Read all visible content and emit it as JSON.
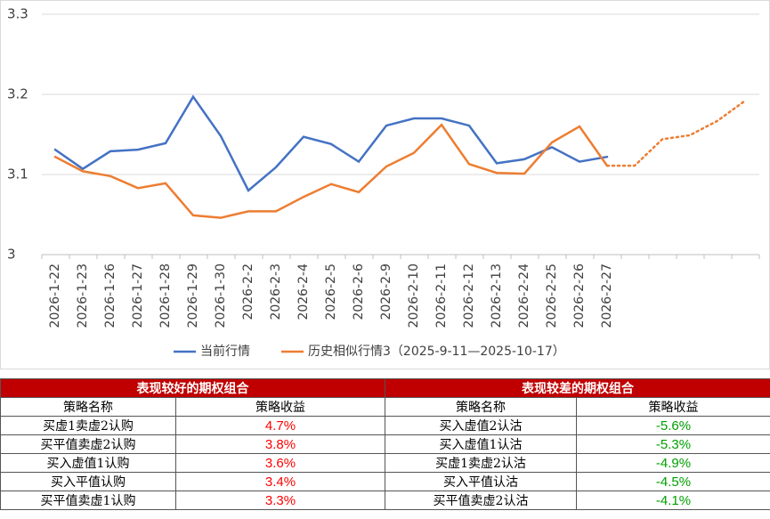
{
  "chart_data": {
    "type": "line",
    "categories": [
      "2026-1-22",
      "2026-1-23",
      "2026-1-26",
      "2026-1-27",
      "2026-1-28",
      "2026-1-29",
      "2026-1-30",
      "2026-2-2",
      "2026-2-3",
      "2026-2-4",
      "2026-2-5",
      "2026-2-6",
      "2026-2-9",
      "2026-2-10",
      "2026-2-11",
      "2026-2-12",
      "2026-2-13",
      "2026-2-24",
      "2026-2-25",
      "2026-2-26",
      "2026-2-27",
      null,
      null,
      null,
      null,
      null
    ],
    "series": [
      {
        "name": "当前行情",
        "color": "#4472c4",
        "values": [
          3.131,
          3.107,
          3.129,
          3.131,
          3.139,
          3.197,
          3.148,
          3.08,
          3.109,
          3.147,
          3.138,
          3.116,
          3.161,
          3.17,
          3.17,
          3.161,
          3.114,
          3.119,
          3.134,
          3.116,
          3.122,
          null,
          null,
          null,
          null,
          null
        ]
      },
      {
        "name": "历史相似行情3（2025-9-11—2025-10-17）",
        "color": "#ed7d31",
        "dotted_from_index": 20,
        "values": [
          3.122,
          3.104,
          3.098,
          3.083,
          3.089,
          3.049,
          3.046,
          3.054,
          3.054,
          3.072,
          3.088,
          3.078,
          3.11,
          3.127,
          3.162,
          3.113,
          3.102,
          3.101,
          3.14,
          3.16,
          3.111,
          3.111,
          3.144,
          3.149,
          3.167,
          3.192
        ]
      }
    ],
    "ylim": [
      3,
      3.3
    ],
    "yticks": [
      3,
      3.1,
      3.2,
      3.3
    ],
    "grid": true,
    "legend": "bottom"
  },
  "table": {
    "header_color": "#c00000",
    "groups": [
      "表现较好的期权组合",
      "表现较差的期权组合"
    ],
    "columns": [
      "策略名称",
      "策略收益",
      "策略名称",
      "策略收益"
    ],
    "good_color": "#ff0000",
    "bad_color": "#00a000",
    "rows": [
      [
        "买虚1卖虚2认购",
        "4.7%",
        "买入虚值2认沽",
        "-5.6%"
      ],
      [
        "买平值卖虚2认购",
        "3.8%",
        "买入虚值1认沽",
        "-5.3%"
      ],
      [
        "买入虚值1认购",
        "3.6%",
        "买虚1卖虚2认沽",
        "-4.9%"
      ],
      [
        "买入平值认购",
        "3.4%",
        "买入平值认沽",
        "-4.5%"
      ],
      [
        "买平值卖虚1认购",
        "3.3%",
        "买平值卖虚2认沽",
        "-4.1%"
      ]
    ]
  }
}
